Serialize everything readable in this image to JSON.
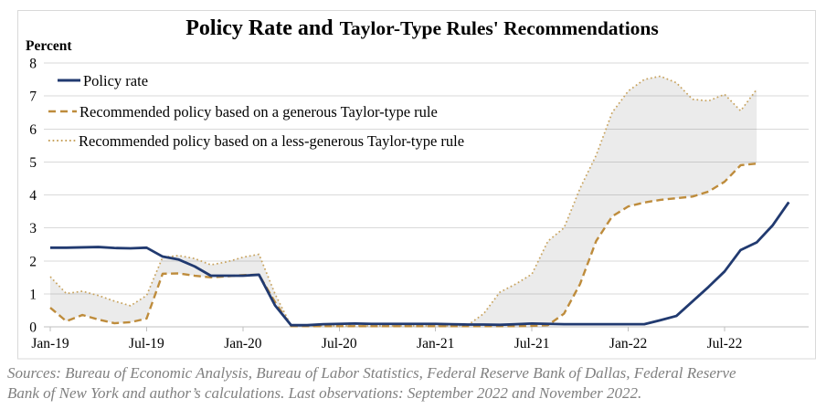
{
  "figure": {
    "title_part1": "Policy Rate and",
    "title_part2": "Taylor-Type Rules' Recommendations",
    "y_axis_label": "Percent",
    "source_line1": "Sources: Bureau of Economic Analysis, Bureau of Labor Statistics, Federal Reserve Bank of Dallas, Federal Reserve",
    "source_line2": "Bank of New York and author’s calculations. Last observations: September 2022 and November 2022.",
    "border_color": "#D9D9D9"
  },
  "legend": [
    {
      "label": "Policy rate",
      "style": "solid",
      "color": "#213A70"
    },
    {
      "label": "Recommended policy based on a generous Taylor-type rule",
      "style": "dashed",
      "color": "#BE8C3C"
    },
    {
      "label": "Recommended policy based on a less-generous Taylor-type rule",
      "style": "dotted",
      "color": "#C8A35E"
    }
  ],
  "chart_data": {
    "type": "line",
    "title": "Policy Rate and Taylor-Type Rules' Recommendations",
    "ylabel": "Percent",
    "ylim": [
      0,
      8
    ],
    "y_ticks": [
      0,
      1,
      2,
      3,
      4,
      5,
      6,
      7,
      8
    ],
    "x_tick_labels": [
      "Jan-19",
      "Jul-19",
      "Jan-20",
      "Jul-20",
      "Jan-21",
      "Jul-21",
      "Jan-22",
      "Jul-22"
    ],
    "grid": true,
    "grid_color": "#D9D9D9",
    "axis_color": "#BFBFBF",
    "legend_position": "top-left",
    "band_fill_between": [
      "Recommended policy based on a generous Taylor-type rule",
      "Recommended policy based on a less-generous Taylor-type rule"
    ],
    "band_color": "rgba(64,64,64,0.105)",
    "x": [
      "Jan-19",
      "Feb-19",
      "Mar-19",
      "Apr-19",
      "May-19",
      "Jun-19",
      "Jul-19",
      "Aug-19",
      "Sep-19",
      "Oct-19",
      "Nov-19",
      "Dec-19",
      "Jan-20",
      "Feb-20",
      "Mar-20",
      "Apr-20",
      "May-20",
      "Jun-20",
      "Jul-20",
      "Aug-20",
      "Sep-20",
      "Oct-20",
      "Nov-20",
      "Dec-20",
      "Jan-21",
      "Feb-21",
      "Mar-21",
      "Apr-21",
      "May-21",
      "Jun-21",
      "Jul-21",
      "Aug-21",
      "Sep-21",
      "Oct-21",
      "Nov-21",
      "Dec-21",
      "Jan-22",
      "Feb-22",
      "Mar-22",
      "Apr-22",
      "May-22",
      "Jun-22",
      "Jul-22",
      "Aug-22",
      "Sep-22",
      "Oct-22",
      "Nov-22"
    ],
    "series": [
      {
        "name": "Policy rate",
        "style": "solid",
        "color": "#213A70",
        "last_observation": "Nov-22",
        "values": [
          2.4,
          2.4,
          2.41,
          2.42,
          2.39,
          2.38,
          2.4,
          2.13,
          2.04,
          1.83,
          1.55,
          1.55,
          1.55,
          1.58,
          0.65,
          0.05,
          0.05,
          0.08,
          0.09,
          0.1,
          0.09,
          0.09,
          0.09,
          0.09,
          0.09,
          0.08,
          0.07,
          0.07,
          0.06,
          0.08,
          0.1,
          0.09,
          0.08,
          0.08,
          0.08,
          0.08,
          0.08,
          0.08,
          0.2,
          0.33,
          0.77,
          1.21,
          1.68,
          2.33,
          2.56,
          3.08,
          3.78
        ]
      },
      {
        "name": "Recommended policy based on a generous Taylor-type rule",
        "style": "dashed",
        "color": "#BE8C3C",
        "last_observation": "Sep-22",
        "values": [
          0.58,
          0.17,
          0.36,
          0.22,
          0.11,
          0.14,
          0.25,
          1.61,
          1.62,
          1.55,
          1.5,
          1.53,
          1.57,
          1.58,
          0.75,
          0.02,
          0.02,
          0.02,
          0.02,
          0.02,
          0.02,
          0.02,
          0.02,
          0.02,
          0.02,
          0.02,
          0.02,
          0.02,
          0.02,
          0.02,
          0.03,
          0.05,
          0.4,
          1.3,
          2.6,
          3.35,
          3.65,
          3.77,
          3.85,
          3.9,
          3.95,
          4.1,
          4.4,
          4.9,
          4.95
        ]
      },
      {
        "name": "Recommended policy based on a less-generous Taylor-type rule",
        "style": "dotted",
        "color": "#C8A35E",
        "last_observation": "Sep-22",
        "values": [
          1.52,
          1.01,
          1.08,
          0.95,
          0.78,
          0.64,
          0.95,
          2.11,
          2.16,
          2.07,
          1.88,
          1.97,
          2.11,
          2.2,
          1.0,
          0.03,
          0.03,
          0.03,
          0.03,
          0.03,
          0.03,
          0.03,
          0.03,
          0.03,
          0.03,
          0.03,
          0.05,
          0.4,
          1.05,
          1.3,
          1.6,
          2.6,
          3.0,
          4.2,
          5.2,
          6.5,
          7.15,
          7.5,
          7.6,
          7.4,
          6.9,
          6.85,
          7.05,
          6.55,
          7.2
        ]
      }
    ]
  }
}
